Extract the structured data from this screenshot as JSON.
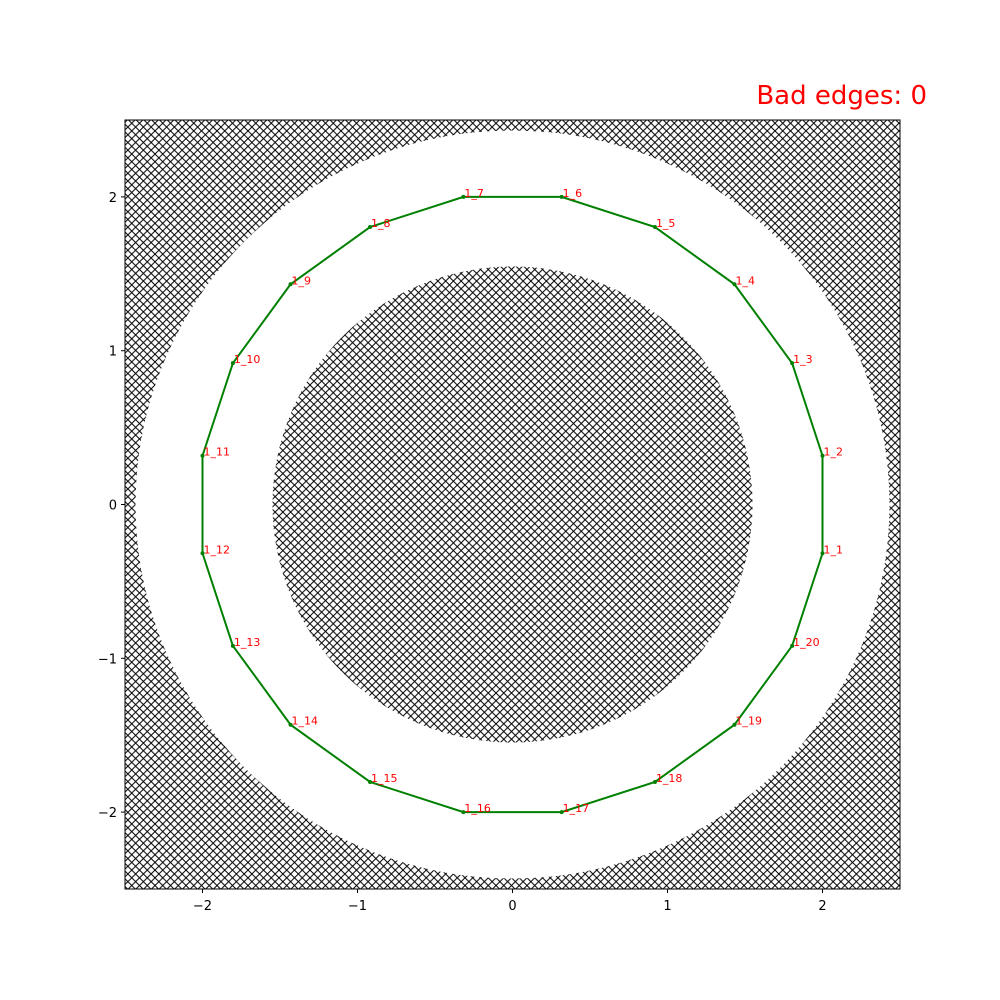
{
  "chart_data": {
    "type": "line",
    "title": "Bad edges: 0",
    "title_color": "#ff0000",
    "x": [
      2.0,
      2.0,
      1.804,
      1.432,
      0.919,
      0.317,
      -0.317,
      -0.919,
      -1.432,
      -1.804,
      -2.0,
      -2.0,
      -1.804,
      -1.432,
      -0.919,
      -0.317,
      0.317,
      0.919,
      1.432,
      1.804
    ],
    "values": [
      -0.317,
      0.317,
      0.919,
      1.432,
      1.804,
      2.0,
      2.0,
      1.804,
      1.432,
      0.919,
      0.317,
      -0.317,
      -0.919,
      -1.432,
      -1.804,
      -2.0,
      -2.0,
      -1.804,
      -1.432,
      -0.919
    ],
    "point_labels": [
      "1_1",
      "1_2",
      "1_3",
      "1_4",
      "1_5",
      "1_6",
      "1_7",
      "1_8",
      "1_9",
      "1_10",
      "1_11",
      "1_12",
      "1_13",
      "1_14",
      "1_15",
      "1_16",
      "1_17",
      "1_18",
      "1_19",
      "1_20"
    ],
    "color": "#008000",
    "label_color": "#ff0000",
    "closed": true,
    "xlim": [
      -2.5,
      2.5
    ],
    "ylim": [
      -2.5,
      2.5
    ],
    "xticks": [
      {
        "value": -2,
        "label": "−2"
      },
      {
        "value": -1,
        "label": "−1"
      },
      0,
      1,
      2
    ],
    "yticks": [
      {
        "value": -2,
        "label": "−2"
      },
      {
        "value": -1,
        "label": "−1"
      },
      0,
      1,
      2
    ]
  }
}
